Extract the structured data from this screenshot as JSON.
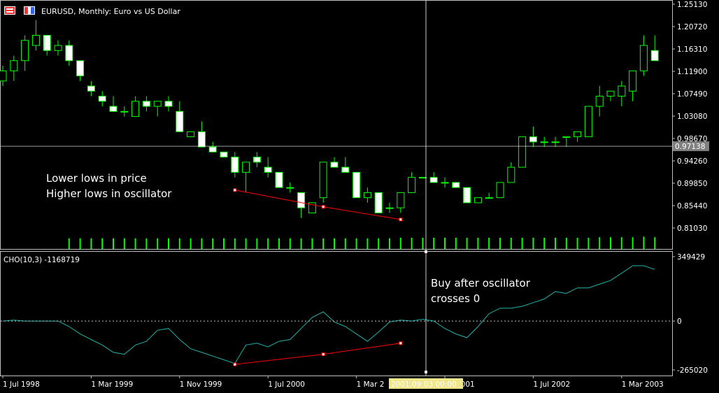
{
  "header": {
    "title": "EURUSD, Monthly:  Euro vs US Dollar",
    "icons": [
      "chart-window-icon",
      "chart-type-icon"
    ]
  },
  "colors": {
    "background": "#000000",
    "frame": "#c0c0c0",
    "bull_candle": "#ffffff",
    "wick": "#00ff00",
    "volume": "#00ff00",
    "oscillator": "#20b2aa",
    "divergence": "#ff0000",
    "crosshair": "#ffffff",
    "current_price_box": "#808080"
  },
  "price_panel": {
    "y_ticks": [
      "1.25130",
      "1.20720",
      "1.16310",
      "1.11900",
      "1.07490",
      "1.03080",
      "0.98670",
      "0.94260",
      "0.89850",
      "0.85440",
      "0.81030"
    ],
    "current_price": "0.97138",
    "annotation_lines": [
      "Lower lows in price",
      "Higher lows in oscillator"
    ]
  },
  "oscillator_panel": {
    "label": "CHO(10,3) -1168719",
    "y_ticks": [
      "349429",
      "0",
      "-265020"
    ],
    "annotation_lines": [
      "Buy after oscillator",
      "crosses 0"
    ]
  },
  "x_axis": {
    "ticks": [
      "1 Jul 1998",
      "1 Mar 1999",
      "1 Nov 1999",
      "1 Jul 2000",
      "1 Mar 2",
      "ov 2001",
      "1 Jul 2002",
      "1 Mar 2003"
    ],
    "crosshair_label": "2001.09.03 00:00"
  },
  "chart_data": {
    "type": "candlestick",
    "symbol": "EURUSD",
    "timeframe": "Monthly",
    "price_range": [
      0.8103,
      1.2513
    ],
    "oscillator_range": [
      -265020,
      349429
    ],
    "candles": [
      {
        "o": 1.1,
        "h": 1.13,
        "l": 1.09,
        "c": 1.12
      },
      {
        "o": 1.12,
        "h": 1.15,
        "l": 1.1,
        "c": 1.14
      },
      {
        "o": 1.14,
        "h": 1.19,
        "l": 1.12,
        "c": 1.18
      },
      {
        "o": 1.17,
        "h": 1.22,
        "l": 1.16,
        "c": 1.19
      },
      {
        "o": 1.19,
        "h": 1.19,
        "l": 1.15,
        "c": 1.16
      },
      {
        "o": 1.16,
        "h": 1.18,
        "l": 1.15,
        "c": 1.17
      },
      {
        "o": 1.17,
        "h": 1.18,
        "l": 1.13,
        "c": 1.14
      },
      {
        "o": 1.14,
        "h": 1.14,
        "l": 1.1,
        "c": 1.11
      },
      {
        "o": 1.09,
        "h": 1.1,
        "l": 1.07,
        "c": 1.08
      },
      {
        "o": 1.07,
        "h": 1.08,
        "l": 1.05,
        "c": 1.06
      },
      {
        "o": 1.05,
        "h": 1.07,
        "l": 1.04,
        "c": 1.04
      },
      {
        "o": 1.04,
        "h": 1.05,
        "l": 1.03,
        "c": 1.04
      },
      {
        "o": 1.03,
        "h": 1.07,
        "l": 1.03,
        "c": 1.06
      },
      {
        "o": 1.06,
        "h": 1.07,
        "l": 1.04,
        "c": 1.05
      },
      {
        "o": 1.05,
        "h": 1.06,
        "l": 1.03,
        "c": 1.06
      },
      {
        "o": 1.06,
        "h": 1.07,
        "l": 1.04,
        "c": 1.05
      },
      {
        "o": 1.04,
        "h": 1.06,
        "l": 1.0,
        "c": 1.0
      },
      {
        "o": 0.99,
        "h": 1.0,
        "l": 0.99,
        "c": 1.0
      },
      {
        "o": 1.0,
        "h": 1.02,
        "l": 0.97,
        "c": 0.97
      },
      {
        "o": 0.97,
        "h": 0.98,
        "l": 0.96,
        "c": 0.96
      },
      {
        "o": 0.96,
        "h": 0.96,
        "l": 0.95,
        "c": 0.95
      },
      {
        "o": 0.95,
        "h": 0.96,
        "l": 0.91,
        "c": 0.92
      },
      {
        "o": 0.92,
        "h": 0.94,
        "l": 0.88,
        "c": 0.94
      },
      {
        "o": 0.95,
        "h": 0.96,
        "l": 0.93,
        "c": 0.94
      },
      {
        "o": 0.93,
        "h": 0.95,
        "l": 0.91,
        "c": 0.92
      },
      {
        "o": 0.92,
        "h": 0.92,
        "l": 0.89,
        "c": 0.89
      },
      {
        "o": 0.89,
        "h": 0.9,
        "l": 0.88,
        "c": 0.89
      },
      {
        "o": 0.88,
        "h": 0.88,
        "l": 0.83,
        "c": 0.85
      },
      {
        "o": 0.84,
        "h": 0.86,
        "l": 0.84,
        "c": 0.86
      },
      {
        "o": 0.87,
        "h": 0.94,
        "l": 0.86,
        "c": 0.94
      },
      {
        "o": 0.94,
        "h": 0.95,
        "l": 0.93,
        "c": 0.93
      },
      {
        "o": 0.93,
        "h": 0.95,
        "l": 0.92,
        "c": 0.92
      },
      {
        "o": 0.92,
        "h": 0.92,
        "l": 0.87,
        "c": 0.87
      },
      {
        "o": 0.87,
        "h": 0.89,
        "l": 0.86,
        "c": 0.88
      },
      {
        "o": 0.88,
        "h": 0.88,
        "l": 0.84,
        "c": 0.84
      },
      {
        "o": 0.85,
        "h": 0.86,
        "l": 0.84,
        "c": 0.85
      },
      {
        "o": 0.85,
        "h": 0.88,
        "l": 0.84,
        "c": 0.88
      },
      {
        "o": 0.88,
        "h": 0.92,
        "l": 0.88,
        "c": 0.91
      },
      {
        "o": 0.91,
        "h": 0.91,
        "l": 0.91,
        "c": 0.91
      },
      {
        "o": 0.91,
        "h": 0.92,
        "l": 0.9,
        "c": 0.9
      },
      {
        "o": 0.9,
        "h": 0.91,
        "l": 0.89,
        "c": 0.9
      },
      {
        "o": 0.9,
        "h": 0.9,
        "l": 0.89,
        "c": 0.89
      },
      {
        "o": 0.89,
        "h": 0.89,
        "l": 0.86,
        "c": 0.86
      },
      {
        "o": 0.86,
        "h": 0.87,
        "l": 0.86,
        "c": 0.87
      },
      {
        "o": 0.87,
        "h": 0.88,
        "l": 0.87,
        "c": 0.87
      },
      {
        "o": 0.87,
        "h": 0.9,
        "l": 0.87,
        "c": 0.9
      },
      {
        "o": 0.9,
        "h": 0.94,
        "l": 0.9,
        "c": 0.93
      },
      {
        "o": 0.93,
        "h": 0.99,
        "l": 0.93,
        "c": 0.99
      },
      {
        "o": 0.99,
        "h": 1.01,
        "l": 0.97,
        "c": 0.98
      },
      {
        "o": 0.98,
        "h": 0.99,
        "l": 0.97,
        "c": 0.98
      },
      {
        "o": 0.98,
        "h": 0.99,
        "l": 0.97,
        "c": 0.98
      },
      {
        "o": 0.99,
        "h": 0.99,
        "l": 0.97,
        "c": 0.99
      },
      {
        "o": 0.99,
        "h": 1.0,
        "l": 0.98,
        "c": 1.0
      },
      {
        "o": 0.99,
        "h": 1.05,
        "l": 0.99,
        "c": 1.05
      },
      {
        "o": 1.05,
        "h": 1.09,
        "l": 1.03,
        "c": 1.07
      },
      {
        "o": 1.07,
        "h": 1.08,
        "l": 1.06,
        "c": 1.08
      },
      {
        "o": 1.07,
        "h": 1.1,
        "l": 1.05,
        "c": 1.09
      },
      {
        "o": 1.08,
        "h": 1.12,
        "l": 1.06,
        "c": 1.12
      },
      {
        "o": 1.12,
        "h": 1.19,
        "l": 1.11,
        "c": 1.17
      },
      {
        "o": 1.16,
        "h": 1.19,
        "l": 1.14,
        "c": 1.14
      }
    ],
    "volume": [
      0.95,
      0.95,
      0.95,
      0.95,
      0.95,
      0.95,
      0.95,
      0.95,
      0.95,
      0.95,
      0.95,
      0.95,
      0.95,
      0.95,
      0.95,
      0.95,
      0.95,
      0.95,
      0.95,
      0.95,
      0.95,
      0.95,
      0.95,
      0.95,
      0.95,
      0.95,
      0.95,
      0.95,
      0.95,
      0.95,
      0.95,
      0.95,
      0.95,
      0.95,
      0.95,
      0.95,
      1.0,
      1.0,
      1.0,
      1.0,
      1.0,
      1.0,
      1.0,
      1.0,
      1.0,
      1.0,
      1.0,
      1.0,
      1.0,
      1.0,
      1.0,
      1.0,
      1.0,
      1.0,
      1.05,
      1.05,
      1.05,
      1.05,
      1.1,
      1.05
    ],
    "oscillator": [
      0,
      5000,
      0,
      0,
      0,
      0,
      -30000,
      -70000,
      -100000,
      -130000,
      -170000,
      -180000,
      -130000,
      -110000,
      -50000,
      -40000,
      -100000,
      -150000,
      -170000,
      -190000,
      -210000,
      -230000,
      -130000,
      -120000,
      -140000,
      -110000,
      -100000,
      -40000,
      20000,
      50000,
      -5000,
      -30000,
      -70000,
      -110000,
      -60000,
      -5000,
      5000,
      0,
      10000,
      0,
      -40000,
      -70000,
      -90000,
      -30000,
      40000,
      70000,
      70000,
      80000,
      100000,
      120000,
      160000,
      150000,
      180000,
      180000,
      200000,
      220000,
      260000,
      300000,
      300000,
      280000
    ],
    "divergence_price": [
      {
        "index": 21,
        "value": 0.885
      },
      {
        "index": 29,
        "value": 0.852
      },
      {
        "index": 36,
        "value": 0.827
      }
    ],
    "divergence_oscillator": [
      {
        "index": 21,
        "value": -235000
      },
      {
        "index": 29,
        "value": -180000
      },
      {
        "index": 36,
        "value": -120000
      }
    ],
    "crosshair_price": 0.97138,
    "crosshair_index": 36
  }
}
